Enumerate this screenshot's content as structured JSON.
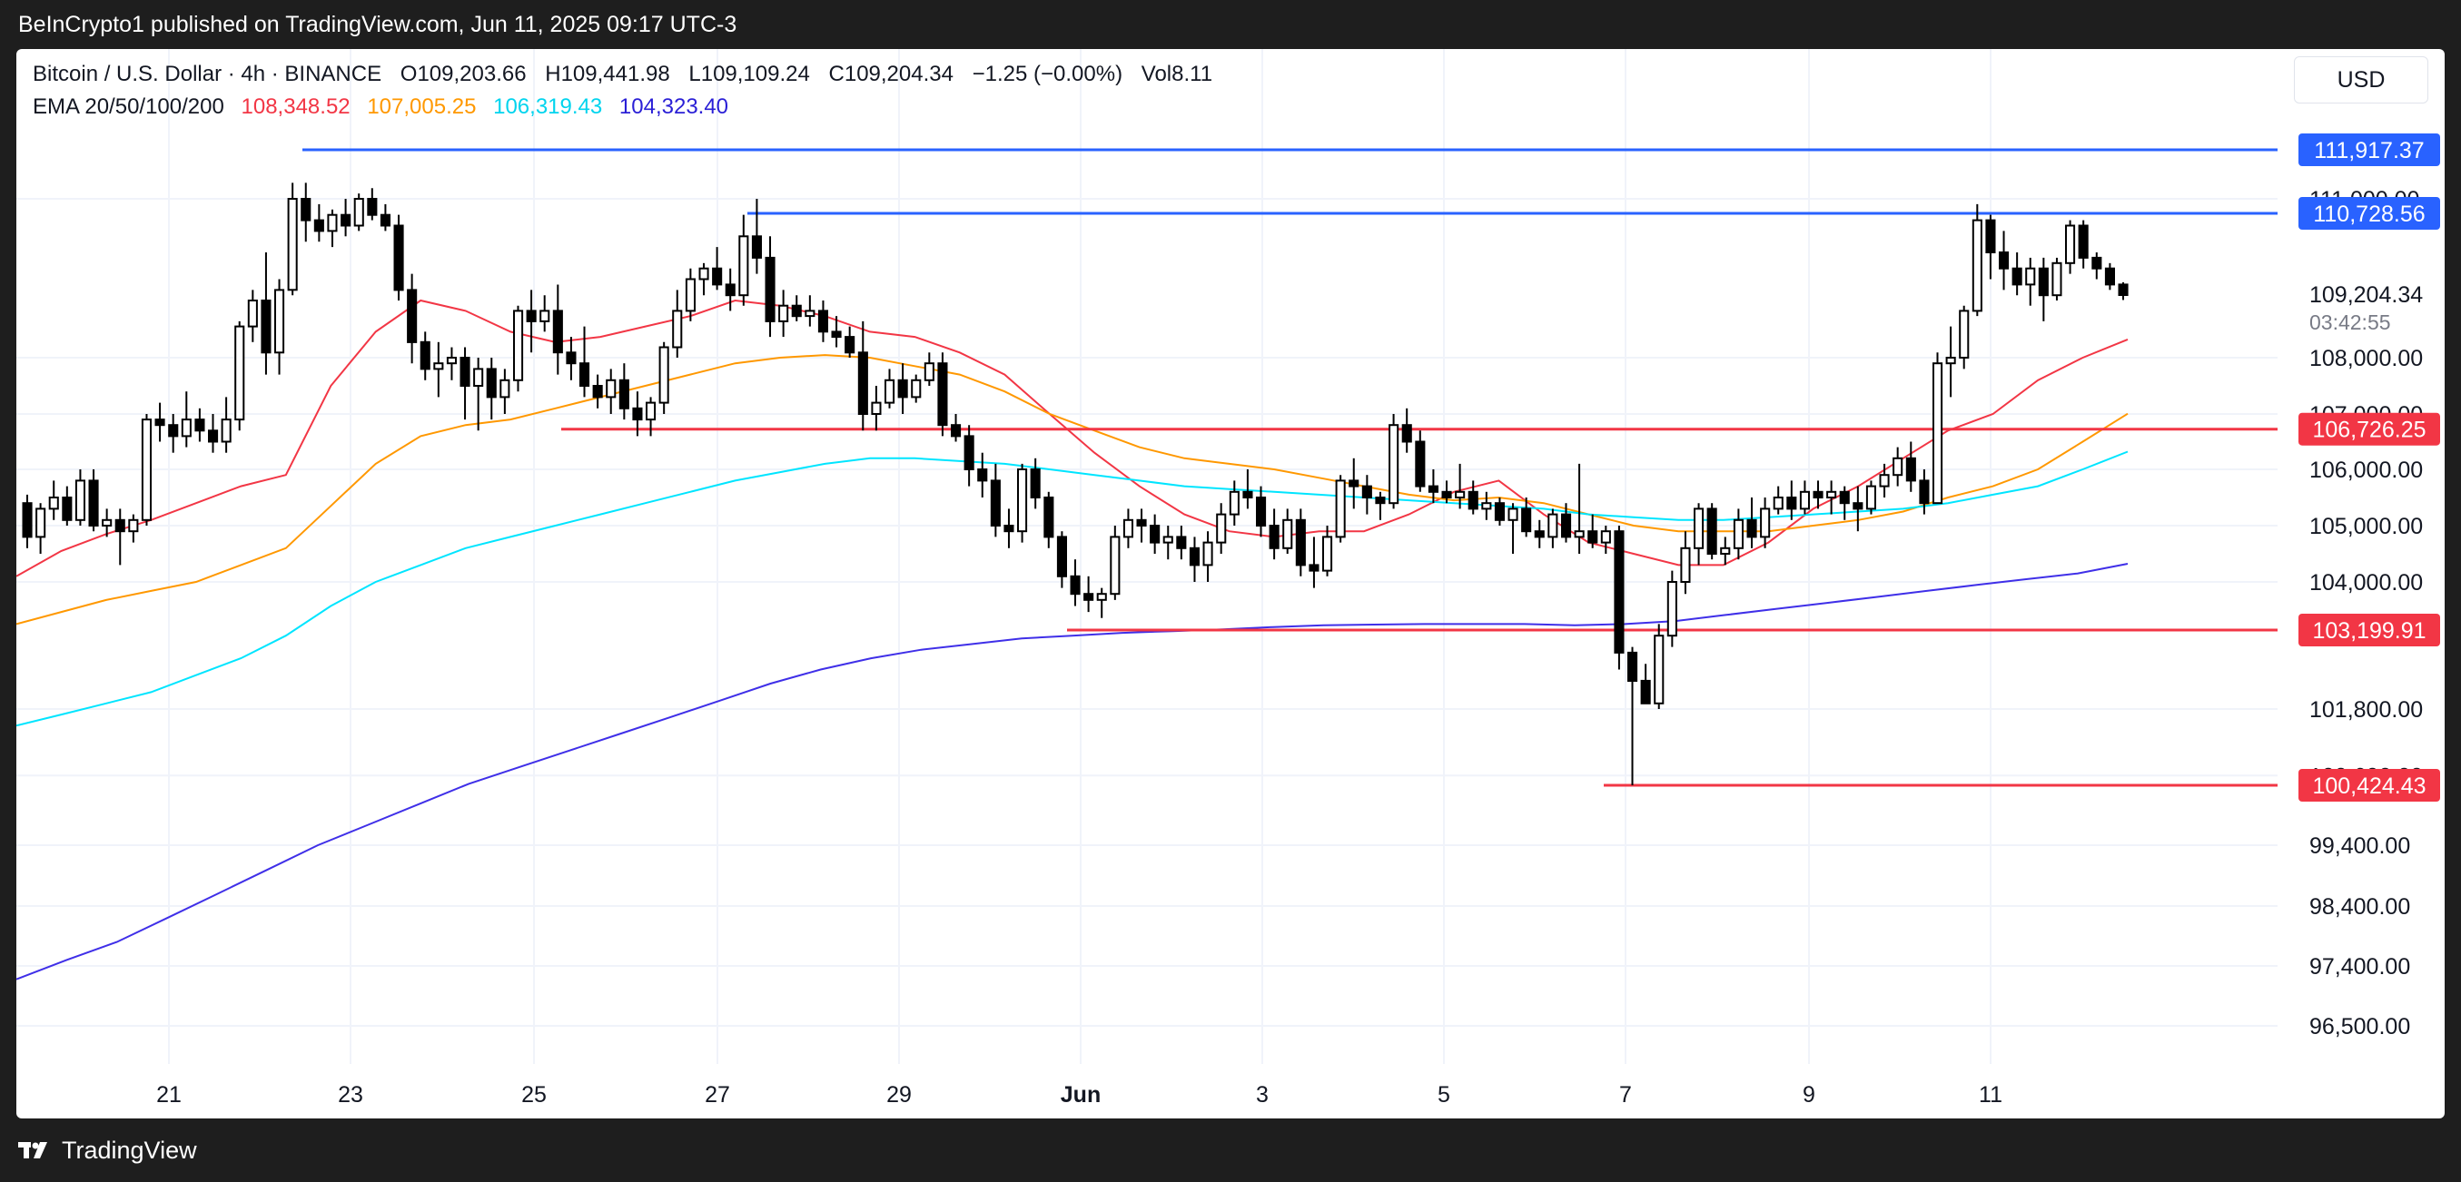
{
  "header": {
    "published_text": "BeInCrypto1 published on TradingView.com, Jun 11, 2025 09:17 UTC-3"
  },
  "legend": {
    "symbol": "Bitcoin / U.S. Dollar · 4h · BINANCE",
    "open": "O109,203.66",
    "high": "H109,441.98",
    "low": "L109,109.24",
    "close": "C109,204.34",
    "change": "−1.25 (−0.00%)",
    "volume": "Vol8.11",
    "ema_label": "EMA 20/50/100/200",
    "ema20": "108,348.52",
    "ema50": "107,005.25",
    "ema100": "106,319.43",
    "ema200": "104,323.40"
  },
  "currency": "USD",
  "footer": {
    "brand": "TradingView"
  },
  "colors": {
    "ema20": "#f23645",
    "ema50": "#ff9800",
    "ema100": "#00e5ff",
    "ema200": "#3f2fe8",
    "resistance": "#2962ff",
    "support": "#f23645",
    "candle": "#000000"
  },
  "chart_data": {
    "type": "candlestick",
    "symbol": "BTCUSD",
    "interval": "4h",
    "x_ticks": [
      "21",
      "23",
      "25",
      "27",
      "29",
      "Jun",
      "3",
      "5",
      "7",
      "9",
      "11"
    ],
    "y_ticks": [
      111000,
      108000,
      107000,
      106000,
      105000,
      104000,
      101800,
      100600,
      99400,
      98400,
      97400,
      96500
    ],
    "y_tick_labels": [
      "111,000.00",
      "108,000.00",
      "107,000.00",
      "106,000.00",
      "105,000.00",
      "104,000.00",
      "101,800.00",
      "100,600.00",
      "99,400.00",
      "98,400.00",
      "97,400.00",
      "96,500.00"
    ],
    "current_price": "109,204.34",
    "countdown": "03:42:55",
    "levels": [
      {
        "value": 111917.37,
        "label": "111,917.37",
        "kind": "resistance"
      },
      {
        "value": 110728.56,
        "label": "110,728.56",
        "kind": "resistance"
      },
      {
        "value": 106726.25,
        "label": "106,726.25",
        "kind": "support"
      },
      {
        "value": 103199.91,
        "label": "103,199.91",
        "kind": "support"
      },
      {
        "value": 100424.43,
        "label": "100,424.43",
        "kind": "support"
      }
    ],
    "candles": [
      [
        105400,
        105550,
        104600,
        104800
      ],
      [
        104800,
        105400,
        104500,
        105300
      ],
      [
        105300,
        105800,
        105100,
        105500
      ],
      [
        105500,
        105700,
        105000,
        105100
      ],
      [
        105100,
        106000,
        105000,
        105800
      ],
      [
        105800,
        106000,
        104900,
        105000
      ],
      [
        105000,
        105300,
        104800,
        105100
      ],
      [
        105100,
        105300,
        104300,
        104900
      ],
      [
        104900,
        105200,
        104700,
        105100
      ],
      [
        105100,
        107000,
        105000,
        106900
      ],
      [
        106900,
        107200,
        106500,
        106800
      ],
      [
        106800,
        107000,
        106300,
        106600
      ],
      [
        106600,
        107400,
        106400,
        106900
      ],
      [
        106900,
        107100,
        106500,
        106700
      ],
      [
        106700,
        107000,
        106300,
        106500
      ],
      [
        106500,
        107300,
        106300,
        106900
      ],
      [
        106900,
        108700,
        106700,
        108600
      ],
      [
        108600,
        109300,
        108300,
        109100
      ],
      [
        109100,
        110000,
        107700,
        108100
      ],
      [
        108100,
        109500,
        107700,
        109300
      ],
      [
        109300,
        111300,
        109200,
        111000
      ],
      [
        111000,
        111300,
        110200,
        110600
      ],
      [
        110600,
        110900,
        110200,
        110400
      ],
      [
        110400,
        110800,
        110100,
        110700
      ],
      [
        110700,
        111000,
        110300,
        110500
      ],
      [
        110500,
        111100,
        110400,
        111000
      ],
      [
        111000,
        111200,
        110600,
        110700
      ],
      [
        110700,
        110900,
        110400,
        110500
      ],
      [
        110500,
        110700,
        109100,
        109300
      ],
      [
        109300,
        109600,
        107900,
        108300
      ],
      [
        108300,
        108500,
        107600,
        107800
      ],
      [
        107800,
        108300,
        107300,
        107900
      ],
      [
        107900,
        108200,
        107600,
        108000
      ],
      [
        108000,
        108200,
        106900,
        107500
      ],
      [
        107500,
        108000,
        106700,
        107800
      ],
      [
        107800,
        108000,
        106900,
        107300
      ],
      [
        107300,
        107800,
        107000,
        107600
      ],
      [
        107600,
        109000,
        107400,
        108900
      ],
      [
        108900,
        109300,
        108100,
        108700
      ],
      [
        108700,
        109200,
        108500,
        108900
      ],
      [
        108900,
        109400,
        107700,
        108100
      ],
      [
        108100,
        108400,
        107600,
        107900
      ],
      [
        107900,
        108600,
        107300,
        107500
      ],
      [
        107500,
        107700,
        107100,
        107300
      ],
      [
        107300,
        107800,
        107000,
        107600
      ],
      [
        107600,
        107900,
        106900,
        107100
      ],
      [
        107100,
        107400,
        106600,
        106900
      ],
      [
        106900,
        107300,
        106600,
        107200
      ],
      [
        107200,
        108300,
        107000,
        108200
      ],
      [
        108200,
        109300,
        108000,
        108900
      ],
      [
        108900,
        109700,
        108700,
        109500
      ],
      [
        109500,
        109800,
        109200,
        109700
      ],
      [
        109700,
        110100,
        109300,
        109400
      ],
      [
        109400,
        109700,
        108900,
        109200
      ],
      [
        109200,
        110700,
        109000,
        110300
      ],
      [
        110300,
        111000,
        109600,
        109900
      ],
      [
        109900,
        110300,
        108400,
        108700
      ],
      [
        108700,
        109300,
        108400,
        109000
      ],
      [
        109000,
        109200,
        108700,
        108800
      ],
      [
        108800,
        109200,
        108600,
        108900
      ],
      [
        108900,
        109100,
        108300,
        108500
      ],
      [
        108500,
        108800,
        108200,
        108400
      ],
      [
        108400,
        108600,
        108000,
        108100
      ],
      [
        108100,
        108700,
        106700,
        107000
      ],
      [
        107000,
        107500,
        106700,
        107200
      ],
      [
        107200,
        107800,
        107100,
        107600
      ],
      [
        107600,
        107900,
        107000,
        107300
      ],
      [
        107300,
        107700,
        107200,
        107600
      ],
      [
        107600,
        108100,
        107500,
        107900
      ],
      [
        107900,
        108100,
        106600,
        106800
      ],
      [
        106800,
        107000,
        106500,
        106600
      ],
      [
        106600,
        106800,
        105700,
        106000
      ],
      [
        106000,
        106300,
        105500,
        105800
      ],
      [
        105800,
        106100,
        104800,
        105000
      ],
      [
        105000,
        105300,
        104600,
        104900
      ],
      [
        104900,
        106100,
        104700,
        106000
      ],
      [
        106000,
        106200,
        105300,
        105500
      ],
      [
        105500,
        105600,
        104600,
        104800
      ],
      [
        104800,
        104900,
        103900,
        104100
      ],
      [
        104100,
        104400,
        103600,
        103800
      ],
      [
        103800,
        104100,
        103500,
        103700
      ],
      [
        103700,
        103900,
        103400,
        103800
      ],
      [
        103800,
        105000,
        103700,
        104800
      ],
      [
        104800,
        105300,
        104600,
        105100
      ],
      [
        105100,
        105300,
        104700,
        105000
      ],
      [
        105000,
        105200,
        104500,
        104700
      ],
      [
        104700,
        105000,
        104400,
        104800
      ],
      [
        104800,
        105000,
        104400,
        104600
      ],
      [
        104600,
        104800,
        104000,
        104300
      ],
      [
        104300,
        104900,
        104000,
        104700
      ],
      [
        104700,
        105400,
        104500,
        105200
      ],
      [
        105200,
        105800,
        105000,
        105600
      ],
      [
        105600,
        106000,
        105300,
        105500
      ],
      [
        105500,
        105700,
        104800,
        105000
      ],
      [
        105000,
        105300,
        104400,
        104600
      ],
      [
        104600,
        105300,
        104500,
        105100
      ],
      [
        105100,
        105300,
        104100,
        104300
      ],
      [
        104300,
        104800,
        103900,
        104200
      ],
      [
        104200,
        105000,
        104100,
        104800
      ],
      [
        104800,
        105900,
        104700,
        105800
      ],
      [
        105800,
        106200,
        105300,
        105700
      ],
      [
        105700,
        105900,
        105200,
        105500
      ],
      [
        105500,
        105600,
        105100,
        105400
      ],
      [
        105400,
        107000,
        105300,
        106800
      ],
      [
        106800,
        107100,
        106300,
        106500
      ],
      [
        106500,
        106700,
        105600,
        105700
      ],
      [
        105700,
        106000,
        105400,
        105600
      ],
      [
        105600,
        105800,
        105400,
        105500
      ],
      [
        105500,
        106100,
        105300,
        105600
      ],
      [
        105600,
        105800,
        105200,
        105300
      ],
      [
        105300,
        105600,
        105100,
        105400
      ],
      [
        105400,
        105500,
        105000,
        105100
      ],
      [
        105100,
        105400,
        104500,
        105300
      ],
      [
        105300,
        105500,
        104800,
        104900
      ],
      [
        104900,
        105100,
        104600,
        104800
      ],
      [
        104800,
        105300,
        104600,
        105200
      ],
      [
        105200,
        105400,
        104700,
        104800
      ],
      [
        104800,
        106100,
        104500,
        104900
      ],
      [
        104900,
        105200,
        104600,
        104700
      ],
      [
        104700,
        105000,
        104500,
        104900
      ],
      [
        104900,
        105000,
        102500,
        102800
      ],
      [
        102800,
        102900,
        100424,
        102300
      ],
      [
        102300,
        102600,
        101900,
        101900
      ],
      [
        101900,
        103300,
        101800,
        103100
      ],
      [
        103100,
        104200,
        102900,
        104000
      ],
      [
        104000,
        104900,
        103800,
        104600
      ],
      [
        104600,
        105400,
        104300,
        105300
      ],
      [
        105300,
        105400,
        104400,
        104500
      ],
      [
        104500,
        104800,
        104300,
        104600
      ],
      [
        104600,
        105300,
        104400,
        105100
      ],
      [
        105100,
        105500,
        104600,
        104800
      ],
      [
        104800,
        105500,
        104600,
        105300
      ],
      [
        105300,
        105700,
        105200,
        105500
      ],
      [
        105500,
        105800,
        105100,
        105300
      ],
      [
        105300,
        105800,
        105200,
        105600
      ],
      [
        105600,
        105800,
        105300,
        105500
      ],
      [
        105500,
        105800,
        105200,
        105600
      ],
      [
        105600,
        105700,
        105100,
        105400
      ],
      [
        105400,
        105700,
        104900,
        105300
      ],
      [
        105300,
        105800,
        105200,
        105700
      ],
      [
        105700,
        106100,
        105500,
        105900
      ],
      [
        105900,
        106400,
        105700,
        106200
      ],
      [
        106200,
        106500,
        105600,
        105800
      ],
      [
        105800,
        106000,
        105200,
        105400
      ],
      [
        105400,
        108100,
        105400,
        107900
      ],
      [
        107900,
        108600,
        107300,
        108000
      ],
      [
        108000,
        109000,
        107800,
        108900
      ],
      [
        108900,
        110900,
        108800,
        110600
      ],
      [
        110600,
        110700,
        109500,
        110000
      ],
      [
        110000,
        110400,
        109300,
        109700
      ],
      [
        109700,
        110000,
        109200,
        109400
      ],
      [
        109400,
        109900,
        109000,
        109700
      ],
      [
        109700,
        109900,
        108700,
        109200
      ],
      [
        109200,
        109900,
        109100,
        109800
      ],
      [
        109800,
        110600,
        109600,
        110500
      ],
      [
        110500,
        110600,
        109700,
        109900
      ],
      [
        109900,
        110000,
        109500,
        109700
      ],
      [
        109700,
        109800,
        109300,
        109400
      ],
      [
        109400,
        109442,
        109109,
        109204
      ]
    ],
    "ema_series": [
      {
        "name": "EMA 20",
        "values": [
          104100,
          104550,
          104850,
          105100,
          105400,
          105700,
          105900,
          107500,
          108500,
          109100,
          108900,
          108500,
          108300,
          108400,
          108600,
          108800,
          109100,
          109000,
          108800,
          108500,
          108400,
          108100,
          107700,
          107000,
          106300,
          105700,
          105200,
          104900,
          104800,
          104900,
          104900,
          105200,
          105600,
          105800,
          105200,
          104700,
          104500,
          104300,
          104300,
          104700,
          105300,
          105700,
          106200,
          106700,
          107000,
          107600,
          108000,
          108350
        ]
      },
      {
        "name": "EMA 50",
        "values": [
          103300,
          103500,
          103700,
          103850,
          104000,
          104300,
          104600,
          105350,
          106100,
          106600,
          106800,
          106900,
          107100,
          107300,
          107500,
          107700,
          107900,
          108000,
          108050,
          108000,
          107850,
          107700,
          107400,
          107000,
          106700,
          106400,
          106200,
          106100,
          106000,
          105850,
          105700,
          105550,
          105450,
          105500,
          105400,
          105200,
          105000,
          104900,
          104900,
          104900,
          105000,
          105100,
          105250,
          105500,
          105700,
          106000,
          106500,
          107005
        ]
      },
      {
        "name": "EMA 100",
        "values": [
          101500,
          101700,
          101900,
          102100,
          102400,
          102700,
          103100,
          103600,
          104000,
          104300,
          104600,
          104800,
          105000,
          105200,
          105400,
          105600,
          105800,
          105950,
          106100,
          106200,
          106200,
          106150,
          106100,
          106000,
          105900,
          105800,
          105700,
          105650,
          105600,
          105550,
          105500,
          105450,
          105400,
          105350,
          105300,
          105200,
          105150,
          105100,
          105100,
          105150,
          105200,
          105250,
          105300,
          105400,
          105550,
          105700,
          106000,
          106319
        ]
      },
      {
        "name": "EMA 200",
        "values": [
          97200,
          97500,
          97800,
          98200,
          98600,
          99000,
          99400,
          99750,
          100100,
          100450,
          100750,
          101050,
          101350,
          101650,
          101950,
          102250,
          102500,
          102700,
          102850,
          102950,
          103050,
          103100,
          103150,
          103180,
          103210,
          103250,
          103280,
          103290,
          103300,
          103300,
          103300,
          103280,
          103300,
          103350,
          103450,
          103550,
          103650,
          103750,
          103850,
          103950,
          104050,
          104150,
          104323
        ]
      }
    ]
  }
}
